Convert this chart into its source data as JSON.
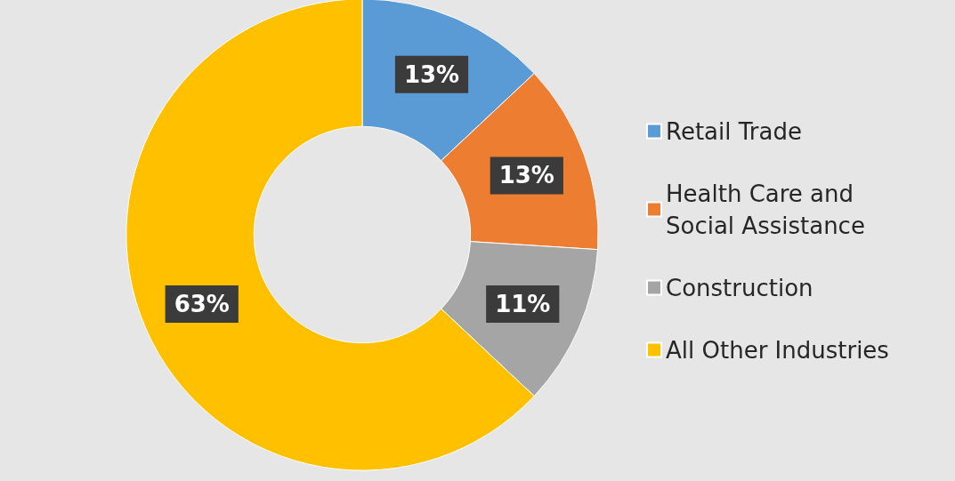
{
  "chart_data": {
    "type": "donut",
    "categories": [
      "Retail Trade",
      "Health Care and Social Assistance",
      "Construction",
      "All Other Industries"
    ],
    "values": [
      13,
      13,
      11,
      63
    ],
    "value_labels": [
      "13%",
      "13%",
      "11%",
      "63%"
    ],
    "colors": [
      "#5b9bd5",
      "#ed7d31",
      "#a5a5a5",
      "#ffc000"
    ],
    "legend": "right"
  }
}
